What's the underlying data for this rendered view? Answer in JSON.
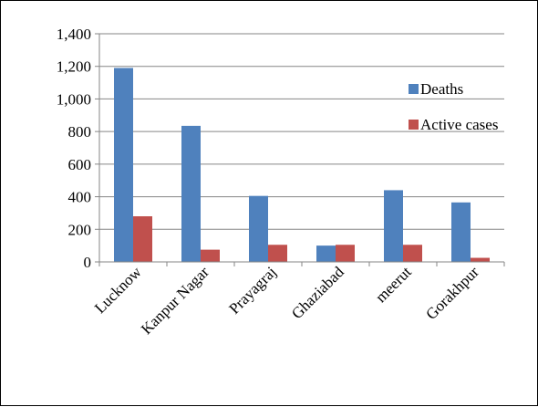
{
  "chart_data": {
    "type": "bar",
    "categories": [
      "Lucknow",
      "Kanpur Nagar",
      "Prayagraj",
      "Ghaziabad",
      "meerut",
      "Gorakhpur"
    ],
    "series": [
      {
        "name": "Deaths",
        "color": "#4F81BD",
        "values": [
          1190,
          835,
          405,
          100,
          440,
          365
        ]
      },
      {
        "name": "Active cases",
        "color": "#C0504D",
        "values": [
          280,
          75,
          105,
          105,
          105,
          25
        ]
      }
    ],
    "y_ticks": [
      "0",
      "200",
      "400",
      "600",
      "800",
      "1,000",
      "1,200",
      "1,400"
    ],
    "ylim": [
      0,
      1400
    ],
    "grid": true,
    "legend_position": "right"
  }
}
